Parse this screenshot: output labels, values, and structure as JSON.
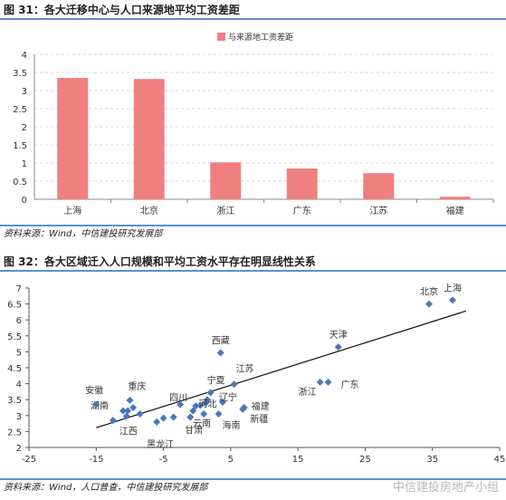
{
  "fig1": {
    "title": "图 31：各大迁移中心与人口来源地平均工资差距",
    "source": "资料来源：Wind，中信建投研究发展部"
  },
  "fig2": {
    "title": "图 32：各大区域迁入人口规模和平均工资水平存在明显线性关系",
    "source": "资料来源：Wind，人口普查，中信建投研究发展部"
  },
  "watermark": "中信建投房地产小组",
  "chart_data": [
    {
      "type": "bar",
      "title": "",
      "categories": [
        "上海",
        "北京",
        "浙江",
        "广东",
        "江苏",
        "福建"
      ],
      "series": [
        {
          "name": "与来源地工资差距",
          "values": [
            3.35,
            3.32,
            1.02,
            0.85,
            0.72,
            0.07
          ],
          "color": "#f08080"
        }
      ],
      "ylim": [
        0,
        4
      ],
      "yticks": [
        "0",
        "0.5",
        "1",
        "1.5",
        "2",
        "2.5",
        "3",
        "3.5",
        "4"
      ],
      "grid": true,
      "legend": "top-left"
    },
    {
      "type": "scatter",
      "title": "",
      "xlim": [
        -25,
        45
      ],
      "ylim": [
        2,
        7
      ],
      "xticks": [
        "-25",
        "-15",
        "-5",
        "5",
        "15",
        "25",
        "35",
        "45"
      ],
      "yticks": [
        "2",
        "2.5",
        "3",
        "3.5",
        "4",
        "4.5",
        "5",
        "5.5",
        "6",
        "6.5",
        "7"
      ],
      "grid": false,
      "marker_color": "#4a78b8",
      "trendline": [
        [
          -15,
          2.62
        ],
        [
          40,
          6.28
        ]
      ],
      "points": [
        {
          "x": 38,
          "y": 6.62,
          "label": "上海"
        },
        {
          "x": 34.5,
          "y": 6.5,
          "label": "北京"
        },
        {
          "x": 21,
          "y": 5.15,
          "label": "天津"
        },
        {
          "x": 3.5,
          "y": 4.97,
          "label": "西藏"
        },
        {
          "x": 19.5,
          "y": 4.05,
          "label": "广东"
        },
        {
          "x": 18.3,
          "y": 4.05,
          "label": "浙江"
        },
        {
          "x": 5.5,
          "y": 3.98,
          "label": "江苏"
        },
        {
          "x": 2,
          "y": 3.72,
          "label": "宁夏"
        },
        {
          "x": 3.8,
          "y": 3.42,
          "label": "辽宁"
        },
        {
          "x": 7,
          "y": 3.25,
          "label": "福建"
        },
        {
          "x": 6.8,
          "y": 3.2,
          "label": "新疆"
        },
        {
          "x": 1.5,
          "y": 3.5,
          "label": ""
        },
        {
          "x": 1.3,
          "y": 3.4,
          "label": ""
        },
        {
          "x": 0.5,
          "y": 3.32,
          "label": "河北"
        },
        {
          "x": -0.2,
          "y": 3.3,
          "label": ""
        },
        {
          "x": 3.2,
          "y": 3.05,
          "label": "海南"
        },
        {
          "x": 1,
          "y": 3.05,
          "label": "云南"
        },
        {
          "x": -0.6,
          "y": 3.15,
          "label": ""
        },
        {
          "x": -1,
          "y": 2.95,
          "label": "甘肃"
        },
        {
          "x": -2.5,
          "y": 3.35,
          "label": "四川"
        },
        {
          "x": -3.5,
          "y": 2.95,
          "label": ""
        },
        {
          "x": -5,
          "y": 2.92,
          "label": ""
        },
        {
          "x": -6,
          "y": 2.8,
          "label": "黑龙江"
        },
        {
          "x": -8.5,
          "y": 3.05,
          "label": ""
        },
        {
          "x": -9.5,
          "y": 3.25,
          "label": ""
        },
        {
          "x": -10,
          "y": 3.48,
          "label": "重庆"
        },
        {
          "x": -10.3,
          "y": 3.15,
          "label": ""
        },
        {
          "x": -10.5,
          "y": 2.98,
          "label": "江西"
        },
        {
          "x": -11,
          "y": 3.15,
          "label": "湖南"
        },
        {
          "x": -12.5,
          "y": 2.85,
          "label": ""
        },
        {
          "x": -15,
          "y": 3.35,
          "label": "安徽"
        }
      ]
    }
  ]
}
